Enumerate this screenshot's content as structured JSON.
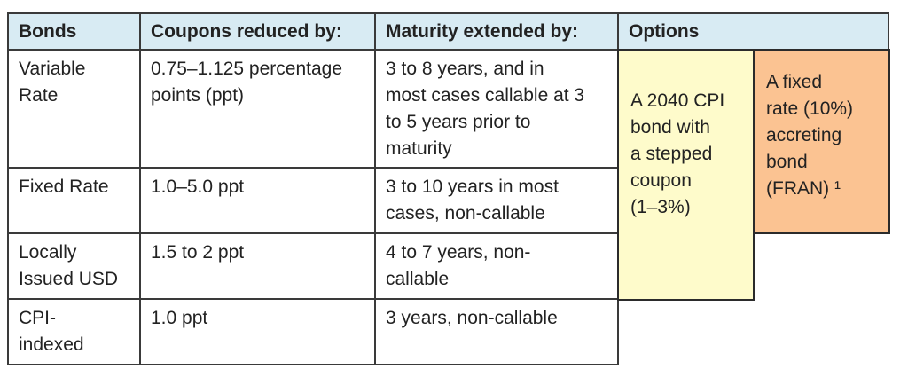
{
  "colors": {
    "header_bg": "#D8EBF3",
    "note_yellow_bg": "#FEFBCB",
    "note_orange_bg": "#FBC392",
    "table_border": "#3a3a3a",
    "text": "#222222"
  },
  "table": {
    "columns": [
      {
        "label": "Bonds"
      },
      {
        "label": "Coupons reduced by:"
      },
      {
        "label": "Maturity extended by:"
      },
      {
        "label": "Options"
      }
    ],
    "rows": [
      {
        "bond": "Variable\nRate",
        "coupons": "0.75–1.125 percentage\npoints (ppt)",
        "maturity": "3 to 8 years, and in\nmost cases callable at 3\nto 5 years prior to\nmaturity"
      },
      {
        "bond": "Fixed Rate",
        "coupons": "1.0–5.0 ppt",
        "maturity": "3 to 10 years in most\ncases, non-callable"
      },
      {
        "bond": "Locally\nIssued USD",
        "coupons": "1.5 to 2 ppt",
        "maturity": "4 to 7 years, non-\ncallable"
      },
      {
        "bond": "CPI-\nindexed",
        "coupons": "1.0 ppt",
        "maturity": "3 years, non-callable"
      }
    ],
    "options_notes": [
      {
        "text": "A 2040 CPI\nbond with\na stepped\ncoupon\n(1–3%)"
      },
      {
        "text": "A fixed\nrate (10%)\naccreting\nbond\n(FRAN) ¹"
      }
    ]
  }
}
